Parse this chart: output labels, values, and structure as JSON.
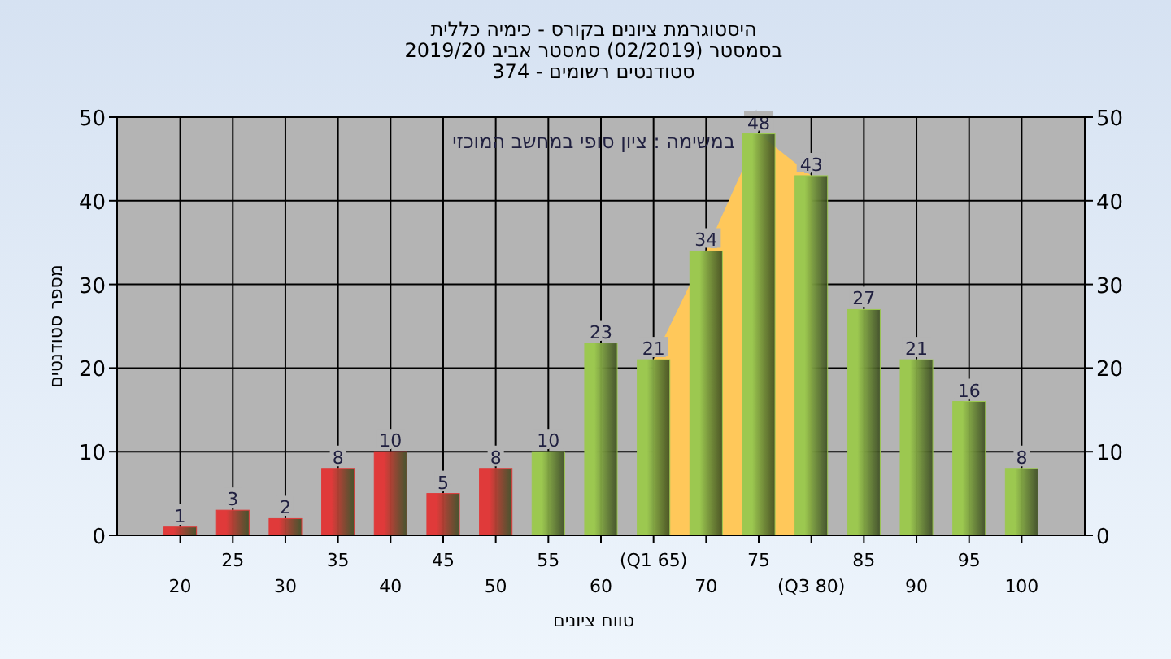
{
  "chart_data": {
    "type": "bar",
    "title": "היסטוגרמת ציונים בקורס - כימיה כללית",
    "subtitle": "בסמסטר  (02/2019)  סמסטר אביב 2019/20\nסטודנטים רשומים - 374",
    "xlabel": "טווח ציונים",
    "ylabel": "מספר סטודנטים",
    "annotations": [
      "במשימה : ציון סופי במחשב המוכזי"
    ],
    "categories": [
      "20",
      "25",
      "30",
      "35",
      "40",
      "45",
      "50",
      "55",
      "60",
      "(Q1 65)",
      "70",
      "75",
      "(Q3 80)",
      "85",
      "90",
      "95",
      "100"
    ],
    "series": [
      {
        "type": "area",
        "color": "#ffc85a",
        "values": [
          null,
          null,
          null,
          null,
          null,
          null,
          null,
          null,
          null,
          21,
          34,
          48,
          43,
          null,
          null,
          null,
          null
        ],
        "value_labels": [
          null,
          null,
          null,
          null,
          null,
          null,
          null,
          null,
          null,
          null,
          null,
          null,
          null,
          null,
          null,
          null,
          null
        ]
      },
      {
        "colors": [
          "#e03a3a",
          "#e03a3a",
          "#e03a3a",
          "#e03a3a",
          "#e03a3a",
          "#e03a3a",
          "#e03a3a",
          "#9cc850",
          "#9cc850",
          "#9cc850",
          "#9cc850",
          "#9cc850",
          "#9cc850",
          "#9cc850",
          "#9cc850",
          "#9cc850",
          "#9cc850"
        ],
        "values": [
          1,
          3,
          2,
          8,
          10,
          5,
          8,
          10,
          23,
          21,
          34,
          48,
          43,
          27,
          21,
          16,
          8
        ]
      }
    ],
    "ylim": [
      0,
      50
    ],
    "yticks": [
      0,
      10,
      20,
      30,
      40,
      50
    ],
    "y2lim": [
      0,
      50
    ],
    "y2ticks": [
      0,
      10,
      20,
      30,
      40,
      50
    ],
    "grid": true,
    "data_labels": true
  }
}
